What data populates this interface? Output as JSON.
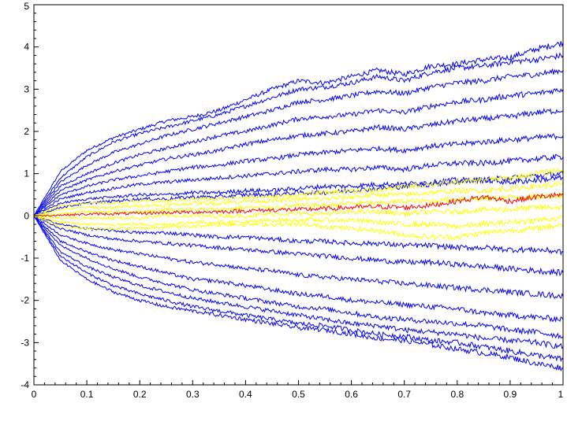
{
  "chart_data": {
    "type": "line",
    "title": "",
    "xlabel": "",
    "ylabel": "",
    "xlim": [
      0,
      1
    ],
    "ylim": [
      -4,
      5
    ],
    "x_ticks": [
      "0",
      "0.1",
      "0.2",
      "0.3",
      "0.4",
      "0.5",
      "0.6",
      "0.7",
      "0.8",
      "0.9",
      "1"
    ],
    "y_ticks": [
      "-4",
      "-3",
      "-2",
      "-1",
      "0",
      "1",
      "2",
      "3",
      "4",
      "5"
    ],
    "grid": false,
    "legend": "none",
    "x": [
      0,
      0.05,
      0.1,
      0.15,
      0.2,
      0.25,
      0.3,
      0.35,
      0.4,
      0.45,
      0.5,
      0.55,
      0.6,
      0.65,
      0.7,
      0.75,
      0.8,
      0.85,
      0.9,
      0.95,
      1.0
    ],
    "series": [
      {
        "color": "#0000ff",
        "values": [
          0,
          1.05,
          1.55,
          1.85,
          2.05,
          2.25,
          2.35,
          2.5,
          2.75,
          3.0,
          3.2,
          3.15,
          3.3,
          3.45,
          3.35,
          3.55,
          3.6,
          3.7,
          3.75,
          3.95,
          4.1
        ]
      },
      {
        "color": "#0000ff",
        "values": [
          0,
          0.9,
          1.4,
          1.75,
          1.95,
          2.1,
          2.25,
          2.4,
          2.6,
          2.8,
          3.0,
          3.05,
          3.15,
          3.3,
          3.2,
          3.4,
          3.5,
          3.55,
          3.65,
          3.7,
          3.8
        ]
      },
      {
        "color": "#0000ff",
        "values": [
          0,
          0.8,
          1.2,
          1.5,
          1.7,
          1.9,
          2.05,
          2.2,
          2.35,
          2.5,
          2.7,
          2.75,
          2.85,
          2.95,
          2.9,
          3.05,
          3.15,
          3.2,
          3.3,
          3.35,
          3.45
        ]
      },
      {
        "color": "#0000ff",
        "values": [
          0,
          0.7,
          1.0,
          1.25,
          1.45,
          1.6,
          1.75,
          1.9,
          2.0,
          2.15,
          2.3,
          2.35,
          2.4,
          2.5,
          2.45,
          2.6,
          2.7,
          2.75,
          2.85,
          2.9,
          3.0
        ]
      },
      {
        "color": "#0000ff",
        "values": [
          0,
          0.6,
          0.85,
          1.05,
          1.2,
          1.35,
          1.45,
          1.55,
          1.7,
          1.8,
          1.9,
          1.95,
          2.0,
          2.1,
          2.05,
          2.15,
          2.25,
          2.3,
          2.35,
          2.45,
          2.5
        ]
      },
      {
        "color": "#0000ff",
        "values": [
          0,
          0.5,
          0.7,
          0.85,
          0.95,
          1.05,
          1.15,
          1.2,
          1.3,
          1.35,
          1.45,
          1.5,
          1.55,
          1.6,
          1.55,
          1.65,
          1.7,
          1.75,
          1.8,
          1.85,
          1.9
        ]
      },
      {
        "color": "#0000ff",
        "values": [
          0,
          0.4,
          0.55,
          0.65,
          0.75,
          0.8,
          0.85,
          0.9,
          0.95,
          1.0,
          1.05,
          1.1,
          1.1,
          1.15,
          1.1,
          1.2,
          1.25,
          1.25,
          1.3,
          1.35,
          1.4
        ]
      },
      {
        "color": "#0000ff",
        "values": [
          0,
          0.3,
          0.4,
          0.45,
          0.5,
          0.5,
          0.55,
          0.55,
          0.6,
          0.6,
          0.65,
          0.7,
          0.7,
          0.75,
          0.75,
          0.8,
          0.85,
          0.85,
          0.9,
          0.95,
          1.0
        ]
      },
      {
        "color": "#0000ff",
        "values": [
          0,
          0.2,
          0.3,
          0.35,
          0.4,
          0.4,
          0.45,
          0.45,
          0.5,
          0.5,
          0.55,
          0.55,
          0.6,
          0.65,
          0.7,
          0.75,
          0.8,
          0.85,
          0.8,
          0.85,
          0.9
        ]
      },
      {
        "color": "#0000ff",
        "values": [
          0,
          -0.2,
          -0.3,
          -0.35,
          -0.4,
          -0.4,
          -0.45,
          -0.5,
          -0.5,
          -0.55,
          -0.6,
          -0.6,
          -0.65,
          -0.65,
          -0.7,
          -0.7,
          -0.75,
          -0.75,
          -0.8,
          -0.8,
          -0.85
        ]
      },
      {
        "color": "#0000ff",
        "values": [
          0,
          -0.3,
          -0.45,
          -0.55,
          -0.6,
          -0.65,
          -0.7,
          -0.75,
          -0.8,
          -0.85,
          -0.9,
          -0.95,
          -1.0,
          -1.05,
          -1.1,
          -1.1,
          -1.15,
          -1.2,
          -1.25,
          -1.3,
          -1.35
        ]
      },
      {
        "color": "#0000ff",
        "values": [
          0,
          -0.45,
          -0.65,
          -0.8,
          -0.9,
          -1.0,
          -1.1,
          -1.15,
          -1.25,
          -1.3,
          -1.4,
          -1.45,
          -1.5,
          -1.55,
          -1.6,
          -1.65,
          -1.7,
          -1.75,
          -1.8,
          -1.85,
          -1.9
        ]
      },
      {
        "color": "#0000ff",
        "values": [
          0,
          -0.6,
          -0.85,
          -1.05,
          -1.2,
          -1.35,
          -1.5,
          -1.55,
          -1.65,
          -1.75,
          -1.85,
          -1.9,
          -2.0,
          -2.05,
          -2.1,
          -2.15,
          -2.2,
          -2.3,
          -2.35,
          -2.4,
          -2.45
        ]
      },
      {
        "color": "#0000ff",
        "values": [
          0,
          -0.7,
          -1.0,
          -1.25,
          -1.45,
          -1.6,
          -1.75,
          -1.85,
          -1.95,
          -2.05,
          -2.15,
          -2.2,
          -2.3,
          -2.4,
          -2.45,
          -2.5,
          -2.55,
          -2.6,
          -2.7,
          -2.75,
          -2.85
        ]
      },
      {
        "color": "#0000ff",
        "values": [
          0,
          -0.85,
          -1.2,
          -1.45,
          -1.65,
          -1.8,
          -1.95,
          -2.05,
          -2.15,
          -2.25,
          -2.35,
          -2.45,
          -2.55,
          -2.6,
          -2.7,
          -2.75,
          -2.8,
          -2.9,
          -2.95,
          -3.0,
          -3.1
        ]
      },
      {
        "color": "#0000ff",
        "values": [
          0,
          -0.95,
          -1.35,
          -1.65,
          -1.85,
          -2.0,
          -2.15,
          -2.25,
          -2.35,
          -2.45,
          -2.55,
          -2.6,
          -2.7,
          -2.8,
          -2.85,
          -2.95,
          -3.0,
          -3.1,
          -3.2,
          -3.3,
          -3.4
        ]
      },
      {
        "color": "#0000ff",
        "values": [
          0,
          -1.05,
          -1.5,
          -1.8,
          -2.0,
          -2.15,
          -2.25,
          -2.35,
          -2.45,
          -2.55,
          -2.65,
          -2.7,
          -2.8,
          -2.9,
          -2.95,
          -3.05,
          -3.15,
          -3.25,
          -3.35,
          -3.5,
          -3.6
        ]
      },
      {
        "color": "#ffff00",
        "values": [
          0,
          0.25,
          0.3,
          0.3,
          0.35,
          0.35,
          0.4,
          0.4,
          0.45,
          0.45,
          0.5,
          0.55,
          0.6,
          0.6,
          0.7,
          0.75,
          0.8,
          0.85,
          0.9,
          1.0,
          1.1
        ]
      },
      {
        "color": "#ffff00",
        "values": [
          0,
          0.15,
          0.2,
          0.2,
          0.25,
          0.25,
          0.3,
          0.3,
          0.35,
          0.35,
          0.4,
          0.4,
          0.45,
          0.5,
          0.5,
          0.55,
          0.6,
          0.6,
          0.65,
          0.7,
          0.75
        ]
      },
      {
        "color": "#ffff00",
        "values": [
          0,
          0.05,
          0.1,
          0.1,
          0.1,
          0.15,
          0.15,
          0.15,
          0.2,
          0.2,
          0.25,
          0.25,
          0.3,
          0.3,
          0.35,
          0.35,
          0.4,
          0.4,
          0.45,
          0.45,
          0.5
        ]
      },
      {
        "color": "#ffff00",
        "values": [
          0,
          -0.05,
          -0.05,
          -0.05,
          -0.05,
          0.0,
          0.0,
          0.0,
          0.0,
          0.05,
          0.05,
          0.05,
          0.1,
          0.1,
          0.05,
          0.1,
          0.1,
          0.15,
          0.15,
          0.2,
          0.2
        ]
      },
      {
        "color": "#ffff00",
        "values": [
          0,
          -0.15,
          -0.2,
          -0.2,
          -0.2,
          -0.2,
          -0.15,
          -0.15,
          -0.15,
          -0.1,
          -0.1,
          -0.1,
          -0.1,
          -0.15,
          -0.2,
          -0.2,
          -0.25,
          -0.2,
          -0.15,
          -0.1,
          -0.05
        ]
      },
      {
        "color": "#ffff00",
        "values": [
          0,
          -0.25,
          -0.3,
          -0.3,
          -0.3,
          -0.25,
          -0.25,
          -0.2,
          -0.2,
          -0.2,
          -0.2,
          -0.25,
          -0.3,
          -0.35,
          -0.45,
          -0.5,
          -0.5,
          -0.4,
          -0.35,
          -0.3,
          -0.2
        ]
      },
      {
        "color": "#ff0000",
        "values": [
          0,
          0.02,
          0.04,
          0.05,
          0.06,
          0.08,
          0.09,
          0.1,
          0.12,
          0.14,
          0.15,
          0.17,
          0.2,
          0.22,
          0.2,
          0.25,
          0.35,
          0.45,
          0.35,
          0.45,
          0.5
        ]
      }
    ]
  }
}
